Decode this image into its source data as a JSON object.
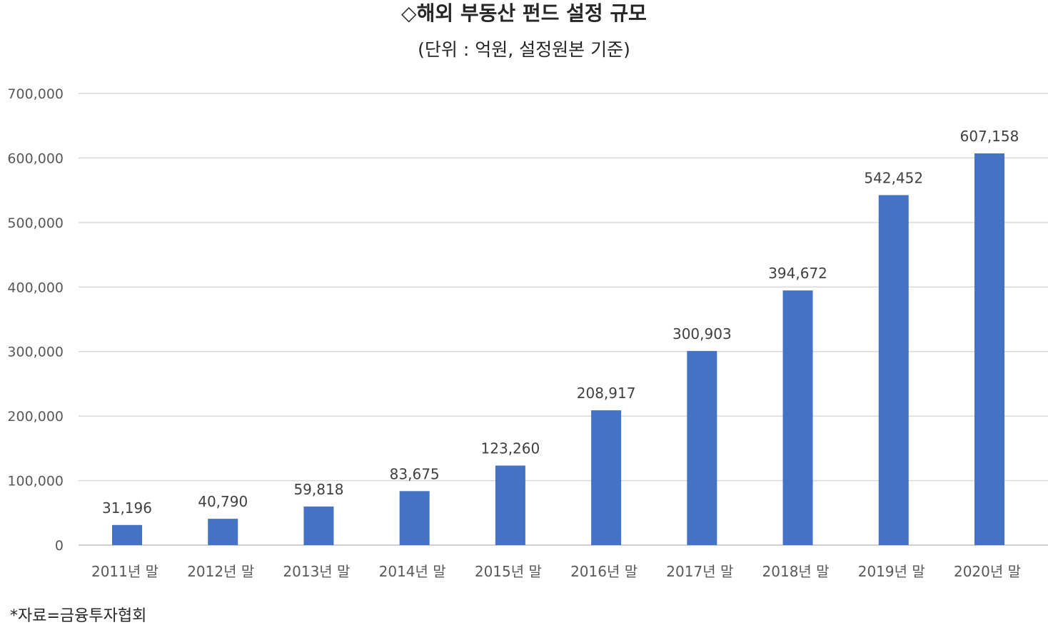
{
  "chart_data": {
    "type": "bar",
    "title": "◇해외 부동산 펀드 설정 규모",
    "subtitle": "(단위 : 억원, 설정원본 기준)",
    "categories": [
      "2011년 말",
      "2012년 말",
      "2013년 말",
      "2014년 말",
      "2015년 말",
      "2016년 말",
      "2017년 말",
      "2018년 말",
      "2019년 말",
      "2020년 말"
    ],
    "values": [
      31196,
      40790,
      59818,
      83675,
      123260,
      208917,
      300903,
      394672,
      542452,
      607158
    ],
    "data_labels": [
      "31,196",
      "40,790",
      "59,818",
      "83,675",
      "123,260",
      "208,917",
      "300,903",
      "394,672",
      "542,452",
      "607,158"
    ],
    "ylim": [
      0,
      700000
    ],
    "yticks": [
      "0",
      "100,000",
      "200,000",
      "300,000",
      "400,000",
      "500,000",
      "600,000",
      "700,000"
    ],
    "grid": true,
    "bar_color": "#4472C4",
    "source": "*자료=금융투자협회"
  }
}
